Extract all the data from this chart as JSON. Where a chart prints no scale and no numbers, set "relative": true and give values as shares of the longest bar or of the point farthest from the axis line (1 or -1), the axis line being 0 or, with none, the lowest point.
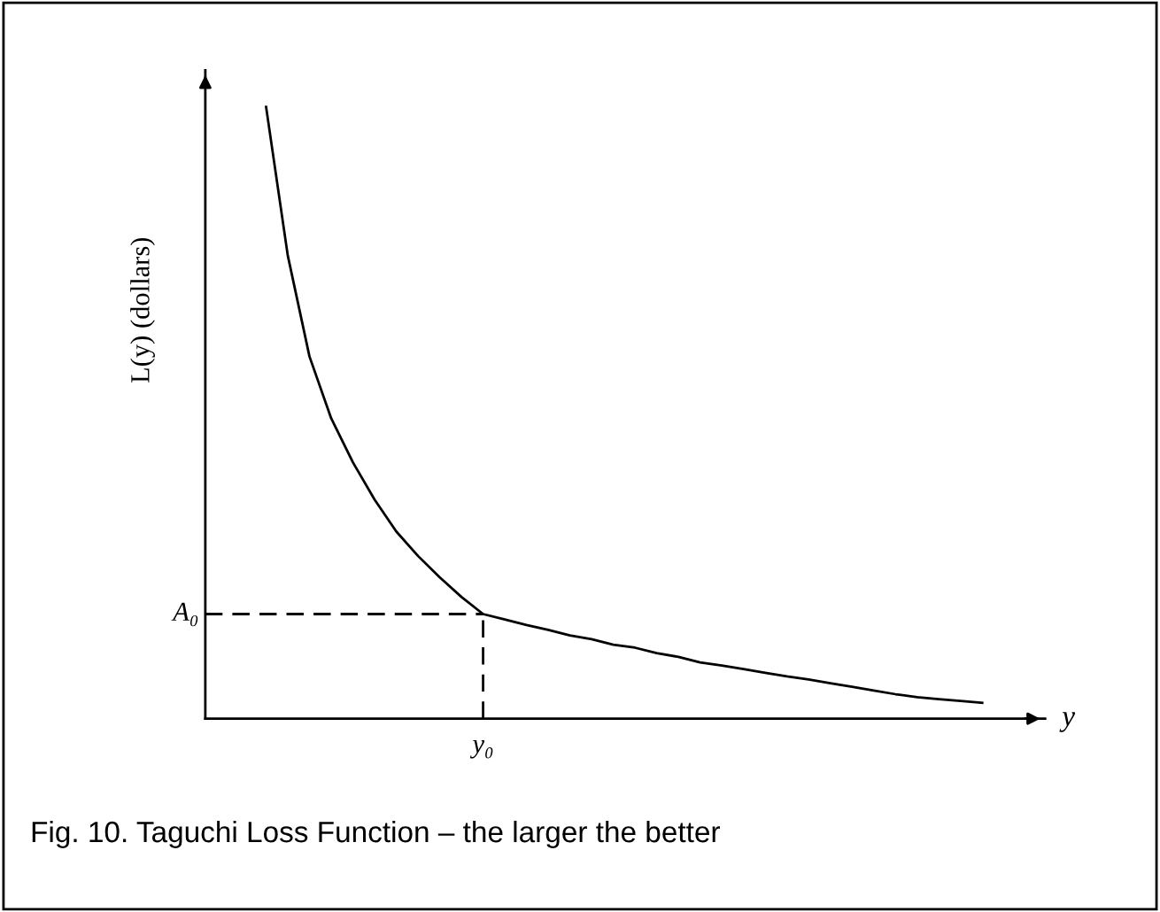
{
  "chart_data": {
    "type": "line",
    "relative": true,
    "xlabel": "y",
    "ylabel": "L(y) (dollars)",
    "categories": [
      null,
      null,
      null,
      null,
      null,
      null,
      null,
      null,
      null,
      null,
      null,
      null,
      null,
      null,
      null,
      null,
      null,
      null,
      null,
      null,
      null,
      null,
      null,
      null,
      null,
      null,
      null,
      null,
      null,
      null,
      null,
      null,
      null,
      null
    ],
    "series": [
      {
        "color": "#000000",
        "values": [
          1,
          0.757,
          0.592,
          0.491,
          0.419,
          0.358,
          0.306,
          0.266,
          0.231,
          0.199,
          0.171,
          0.162,
          0.153,
          0.145,
          0.136,
          0.13,
          0.121,
          0.116,
          0.107,
          0.101,
          0.092,
          0.087,
          0.081,
          0.075,
          0.069,
          0.064,
          0.058,
          0.052,
          0.046,
          0.04,
          0.035,
          0.032,
          0.029,
          0.026
        ]
      }
    ],
    "ref_lines": [
      {
        "axis": "y",
        "value": 0.171,
        "label": "A₀",
        "line_style": "dashed"
      }
    ],
    "annotations": [
      "y₀",
      "Fig. 10. Taguchi Loss Function – the larger the better"
    ],
    "grid": false,
    "legend": false,
    "marker": "none",
    "line_style": "solid"
  }
}
